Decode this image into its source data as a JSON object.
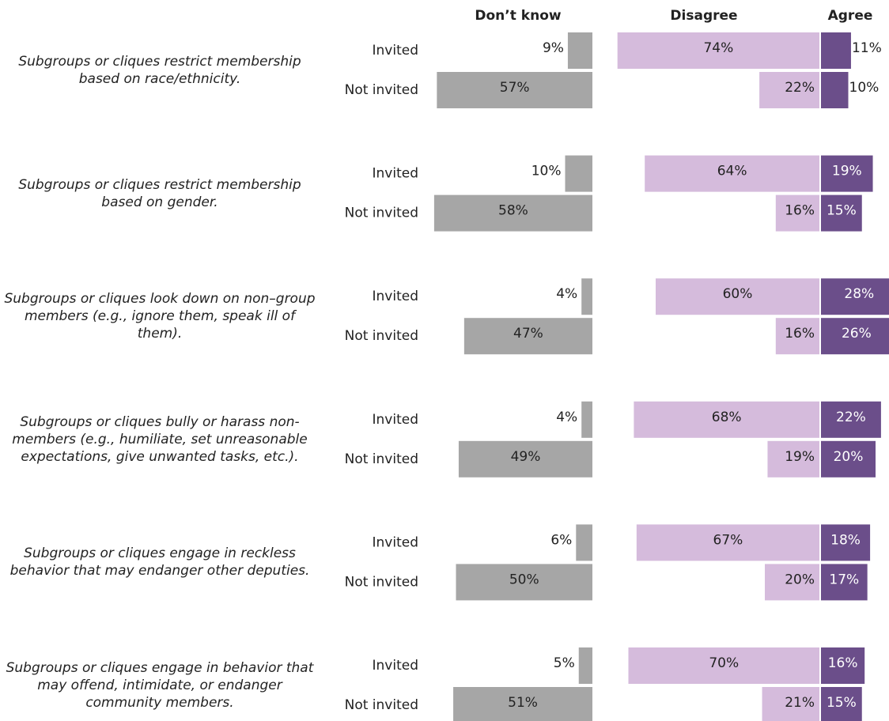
{
  "chart_data": {
    "type": "diverging_bar",
    "categories": [
      "Subgroups or cliques restrict membership based on race/ethnicity.",
      "Subgroups or cliques restrict membership based on gender.",
      "Subgroups or cliques look down on non–group members (e.g., ignore them, speak ill of them).",
      "Subgroups or cliques bully or harass non-members (e.g., humiliate, set unreasonable expectations, give unwanted tasks, etc.).",
      "Subgroups or cliques engage in reckless behavior that may endanger other deputies.",
      "Subgroups or cliques engage in behavior that may offend, intimidate, or endanger community members."
    ],
    "groups": [
      "Invited",
      "Not invited"
    ],
    "series": [
      {
        "name": "Don’t know",
        "color": "#a6a6a6",
        "values": [
          [
            9,
            57
          ],
          [
            10,
            58
          ],
          [
            4,
            47
          ],
          [
            4,
            49
          ],
          [
            6,
            50
          ],
          [
            5,
            51
          ]
        ],
        "value_labels": [
          [
            "9%",
            "57%"
          ],
          [
            "10%",
            "58%"
          ],
          [
            "4%",
            "47%"
          ],
          [
            "4%",
            "49%"
          ],
          [
            "6%",
            "50%"
          ],
          [
            "5%",
            "51%"
          ]
        ]
      },
      {
        "name": "Disagree",
        "color": "#d5bbdc",
        "values": [
          [
            74,
            22
          ],
          [
            64,
            16
          ],
          [
            60,
            16
          ],
          [
            68,
            19
          ],
          [
            67,
            20
          ],
          [
            70,
            21
          ]
        ],
        "value_labels": [
          [
            "74%",
            "22%"
          ],
          [
            "64%",
            "16%"
          ],
          [
            "60%",
            "16%"
          ],
          [
            "68%",
            "19%"
          ],
          [
            "67%",
            "20%"
          ],
          [
            "70%",
            "21%"
          ]
        ]
      },
      {
        "name": "Agree",
        "color": "#6b4e8a",
        "values": [
          [
            11,
            10
          ],
          [
            19,
            15
          ],
          [
            28,
            26
          ],
          [
            22,
            20
          ],
          [
            18,
            17
          ],
          [
            16,
            15
          ]
        ],
        "value_labels": [
          [
            "11%",
            "10%"
          ],
          [
            "19%",
            "15%"
          ],
          [
            "28%",
            "26%"
          ],
          [
            "22%",
            "20%"
          ],
          [
            "18%",
            "17%"
          ],
          [
            "16%",
            "15%"
          ]
        ]
      }
    ]
  }
}
